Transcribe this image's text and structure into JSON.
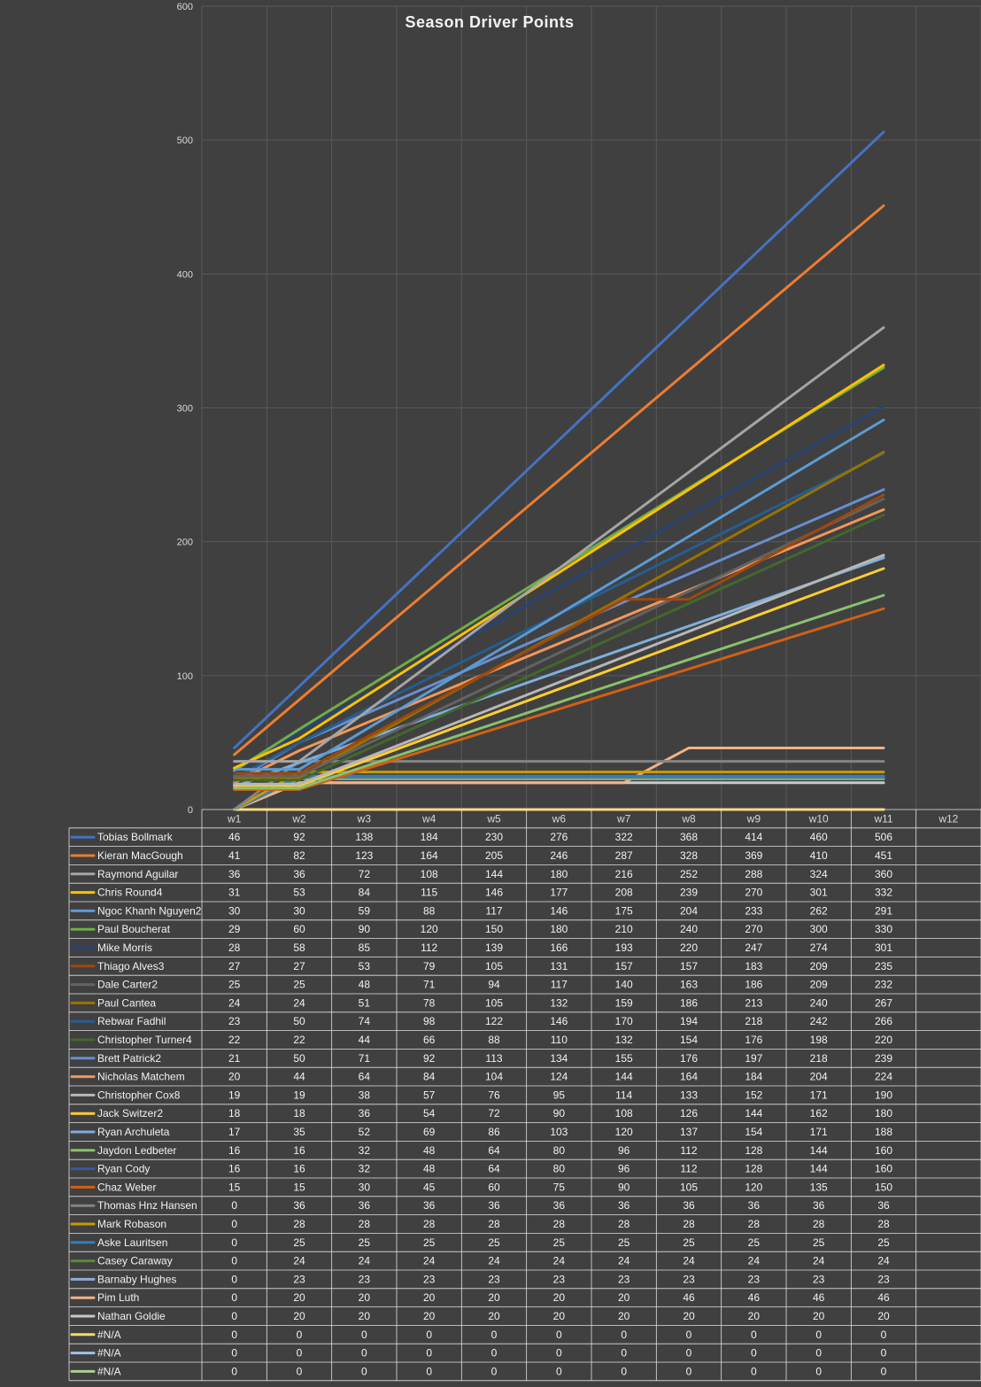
{
  "chart_data": {
    "type": "line",
    "title": "Season Driver Points",
    "xlabel": "",
    "ylabel": "",
    "ylim": [
      0,
      600
    ],
    "yticks": [
      0,
      100,
      200,
      300,
      400,
      500,
      600
    ],
    "grid": true,
    "legend": "data-table-below",
    "categories": [
      "w1",
      "w2",
      "w3",
      "w4",
      "w5",
      "w6",
      "w7",
      "w8",
      "w9",
      "w10",
      "w11",
      "w12"
    ],
    "series": [
      {
        "name": "Tobias Bollmark",
        "color": "#4472C4",
        "values": [
          46,
          92,
          138,
          184,
          230,
          276,
          322,
          368,
          414,
          460,
          506,
          null
        ]
      },
      {
        "name": "Kieran MacGough",
        "color": "#ED7D31",
        "values": [
          41,
          82,
          123,
          164,
          205,
          246,
          287,
          328,
          369,
          410,
          451,
          null
        ]
      },
      {
        "name": "Raymond Aguilar",
        "color": "#A5A5A5",
        "values": [
          36,
          36,
          72,
          108,
          144,
          180,
          216,
          252,
          288,
          324,
          360,
          null
        ]
      },
      {
        "name": "Chris Round4",
        "color": "#FFC000",
        "values": [
          31,
          53,
          84,
          115,
          146,
          177,
          208,
          239,
          270,
          301,
          332,
          null
        ]
      },
      {
        "name": "Ngoc Khanh Nguyen2",
        "color": "#5B9BD5",
        "values": [
          30,
          30,
          59,
          88,
          117,
          146,
          175,
          204,
          233,
          262,
          291,
          null
        ]
      },
      {
        "name": "Paul Boucherat",
        "color": "#70AD47",
        "values": [
          29,
          60,
          90,
          120,
          150,
          180,
          210,
          240,
          270,
          300,
          330,
          null
        ]
      },
      {
        "name": "Mike Morris",
        "color": "#264478",
        "values": [
          28,
          58,
          85,
          112,
          139,
          166,
          193,
          220,
          247,
          274,
          301,
          null
        ]
      },
      {
        "name": "Thiago Alves3",
        "color": "#9E480E",
        "values": [
          27,
          27,
          53,
          79,
          105,
          131,
          157,
          157,
          183,
          209,
          235,
          null
        ]
      },
      {
        "name": "Dale Carter2",
        "color": "#636363",
        "values": [
          25,
          25,
          48,
          71,
          94,
          117,
          140,
          163,
          186,
          209,
          232,
          null
        ]
      },
      {
        "name": "Paul Cantea",
        "color": "#997300",
        "values": [
          24,
          24,
          51,
          78,
          105,
          132,
          159,
          186,
          213,
          240,
          267,
          null
        ]
      },
      {
        "name": "Rebwar Fadhil",
        "color": "#255E91",
        "values": [
          23,
          50,
          74,
          98,
          122,
          146,
          170,
          194,
          218,
          242,
          266,
          null
        ]
      },
      {
        "name": "Christopher Turner4",
        "color": "#43682B",
        "values": [
          22,
          22,
          44,
          66,
          88,
          110,
          132,
          154,
          176,
          198,
          220,
          null
        ]
      },
      {
        "name": "Brett Patrick2",
        "color": "#698ED0",
        "values": [
          21,
          50,
          71,
          92,
          113,
          134,
          155,
          176,
          197,
          218,
          239,
          null
        ]
      },
      {
        "name": "Nicholas Matchem",
        "color": "#F1975A",
        "values": [
          20,
          44,
          64,
          84,
          104,
          124,
          144,
          164,
          184,
          204,
          224,
          null
        ]
      },
      {
        "name": "Christopher Cox8",
        "color": "#B7B7B7",
        "values": [
          19,
          19,
          38,
          57,
          76,
          95,
          114,
          133,
          152,
          171,
          190,
          null
        ]
      },
      {
        "name": "Jack Switzer2",
        "color": "#FFCD33",
        "values": [
          18,
          18,
          36,
          54,
          72,
          90,
          108,
          126,
          144,
          162,
          180,
          null
        ]
      },
      {
        "name": "Ryan Archuleta",
        "color": "#7CAFDD",
        "values": [
          17,
          35,
          52,
          69,
          86,
          103,
          120,
          137,
          154,
          171,
          188,
          null
        ]
      },
      {
        "name": "Jaydon Ledbeter",
        "color": "#8CC168",
        "values": [
          16,
          16,
          32,
          48,
          64,
          80,
          96,
          112,
          128,
          144,
          160,
          null
        ]
      },
      {
        "name": "Ryan Cody",
        "color": "#335AA1",
        "values": [
          16,
          16,
          32,
          48,
          64,
          80,
          96,
          112,
          128,
          144,
          160,
          null
        ]
      },
      {
        "name": "Chaz Weber",
        "color": "#D26012",
        "values": [
          15,
          15,
          30,
          45,
          60,
          75,
          90,
          105,
          120,
          135,
          150,
          null
        ]
      },
      {
        "name": "Thomas Hnz Hansen",
        "color": "#848484",
        "values": [
          0,
          36,
          36,
          36,
          36,
          36,
          36,
          36,
          36,
          36,
          36,
          null
        ]
      },
      {
        "name": "Mark Robason",
        "color": "#CC9A00",
        "values": [
          0,
          28,
          28,
          28,
          28,
          28,
          28,
          28,
          28,
          28,
          28,
          null
        ]
      },
      {
        "name": "Aske Lauritsen",
        "color": "#327DC2",
        "values": [
          0,
          25,
          25,
          25,
          25,
          25,
          25,
          25,
          25,
          25,
          25,
          null
        ]
      },
      {
        "name": "Casey Caraway",
        "color": "#5A8A39",
        "values": [
          0,
          24,
          24,
          24,
          24,
          24,
          24,
          24,
          24,
          24,
          24,
          null
        ]
      },
      {
        "name": "Barnaby Hughes",
        "color": "#8FAADC",
        "values": [
          0,
          23,
          23,
          23,
          23,
          23,
          23,
          23,
          23,
          23,
          23,
          null
        ]
      },
      {
        "name": "Pim Luth",
        "color": "#F4B183",
        "values": [
          0,
          20,
          20,
          20,
          20,
          20,
          20,
          46,
          46,
          46,
          46,
          null
        ]
      },
      {
        "name": "Nathan Goldie",
        "color": "#C9C9C9",
        "values": [
          0,
          20,
          20,
          20,
          20,
          20,
          20,
          20,
          20,
          20,
          20,
          null
        ]
      },
      {
        "name": "#N/A",
        "color": "#FFD966",
        "values": [
          0,
          0,
          0,
          0,
          0,
          0,
          0,
          0,
          0,
          0,
          0,
          null
        ]
      },
      {
        "name": "#N/A",
        "color": "#9DC3E6",
        "values": [
          0,
          0,
          0,
          0,
          0,
          0,
          0,
          0,
          0,
          0,
          0,
          null
        ]
      },
      {
        "name": "#N/A",
        "color": "#A9D18E",
        "values": [
          0,
          0,
          0,
          0,
          0,
          0,
          0,
          0,
          0,
          0,
          0,
          null
        ]
      }
    ]
  }
}
